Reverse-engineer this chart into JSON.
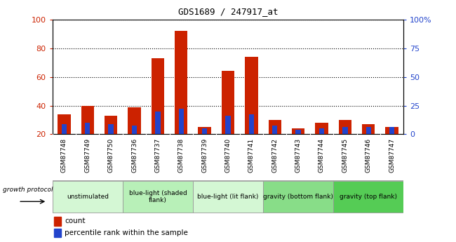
{
  "title": "GDS1689 / 247917_at",
  "samples": [
    "GSM87748",
    "GSM87749",
    "GSM87750",
    "GSM87736",
    "GSM87737",
    "GSM87738",
    "GSM87739",
    "GSM87740",
    "GSM87741",
    "GSM87742",
    "GSM87743",
    "GSM87744",
    "GSM87745",
    "GSM87746",
    "GSM87747"
  ],
  "count_values": [
    34,
    40,
    33,
    39,
    73,
    92,
    25,
    64,
    74,
    30,
    24,
    28,
    30,
    27,
    25
  ],
  "percentile_values": [
    27,
    28,
    27,
    26,
    36,
    38,
    24,
    33,
    34,
    26,
    23,
    24,
    25,
    25,
    25
  ],
  "groups": [
    {
      "label": "unstimulated",
      "start": 0,
      "end": 3,
      "color": "#d4f7d4"
    },
    {
      "label": "blue-light (shaded\nflank)",
      "start": 3,
      "end": 6,
      "color": "#b8f0b8"
    },
    {
      "label": "blue-light (lit flank)",
      "start": 6,
      "end": 9,
      "color": "#d4f7d4"
    },
    {
      "label": "gravity (bottom flank)",
      "start": 9,
      "end": 12,
      "color": "#88dd88"
    },
    {
      "label": "gravity (top flank)",
      "start": 12,
      "end": 15,
      "color": "#55cc55"
    }
  ],
  "ylim_left": [
    20,
    100
  ],
  "yticks_left": [
    20,
    40,
    60,
    80,
    100
  ],
  "yticks_right": [
    0,
    25,
    50,
    75,
    100
  ],
  "ytick_right_labels": [
    "0",
    "25",
    "50",
    "75",
    "100%"
  ],
  "bar_color_red": "#cc2200",
  "bar_color_blue": "#2244cc",
  "growth_protocol_label": "growth protocol",
  "legend_count": "count",
  "legend_percentile": "percentile rank within the sample",
  "bar_width": 0.55,
  "blue_bar_width": 0.22
}
